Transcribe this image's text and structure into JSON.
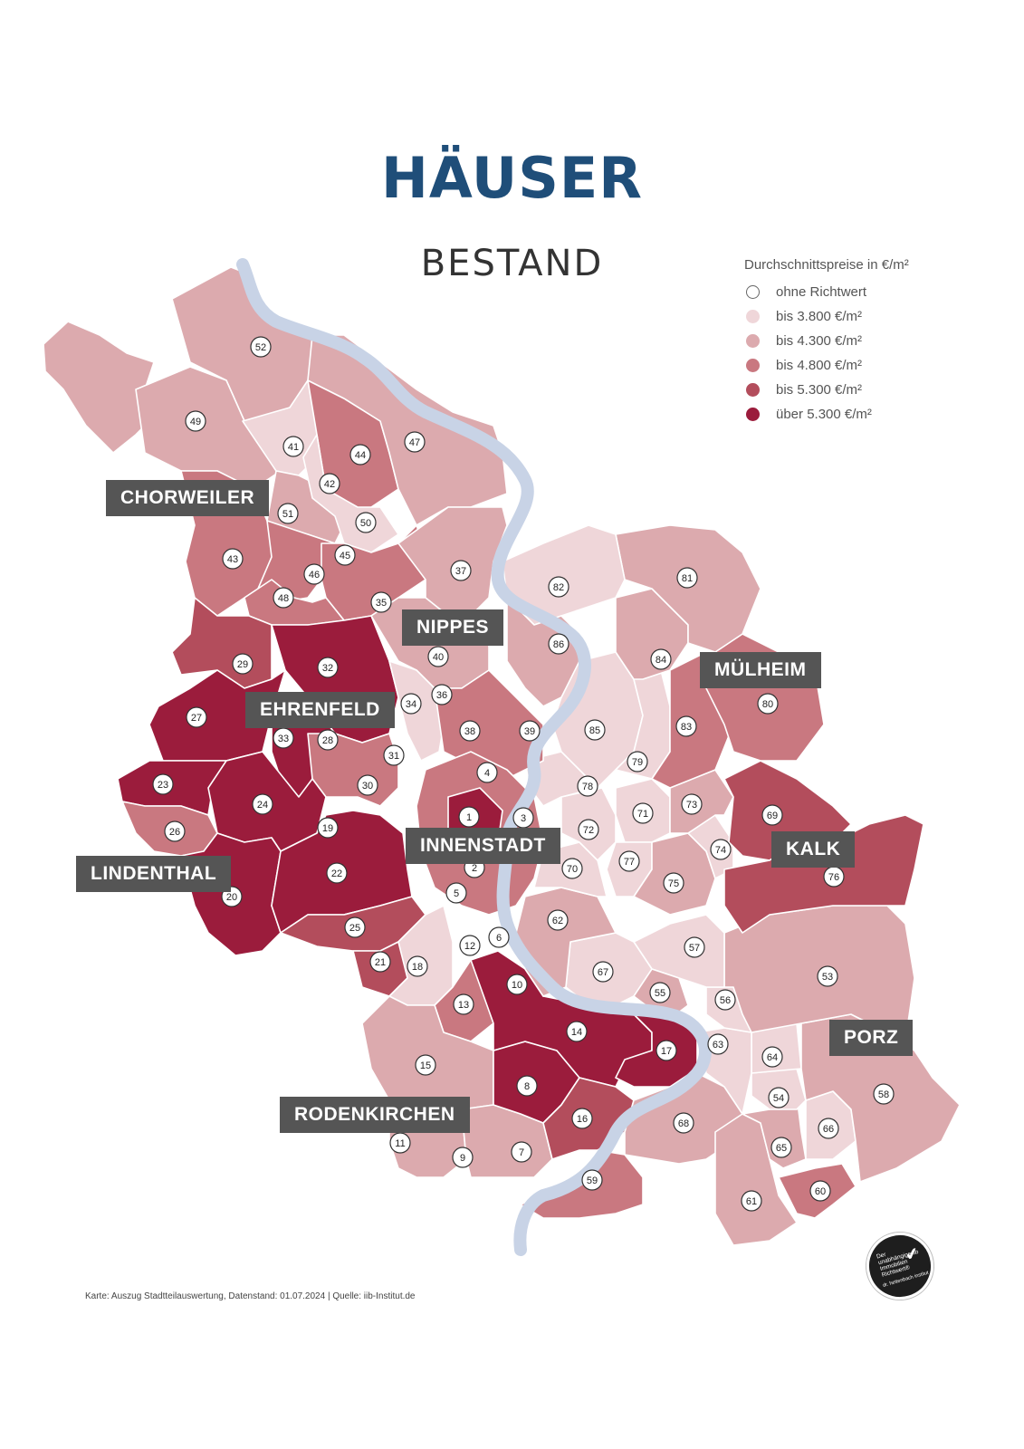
{
  "page": {
    "title": "HÄUSER",
    "subtitle": "BESTAND",
    "source": "Karte: Auszug Stadtteilauswertung, Datenstand: 01.07.2024 | Quelle: iib-Institut.de"
  },
  "legend": {
    "title": "Durchschnittspreise in €/m²",
    "items": [
      {
        "label": "ohne Richtwert",
        "color": "#ffffff"
      },
      {
        "label": "bis 3.800 €/m²",
        "color": "#efd6d9"
      },
      {
        "label": "bis 4.300 €/m²",
        "color": "#dcaaae"
      },
      {
        "label": "bis 4.800 €/m²",
        "color": "#c97880"
      },
      {
        "label": "bis 5.300 €/m²",
        "color": "#b34d5c"
      },
      {
        "label": "über 5.300 €/m²",
        "color": "#9b1c3c"
      }
    ]
  },
  "districts": [
    {
      "name": "CHORWEILER"
    },
    {
      "name": "NIPPES"
    },
    {
      "name": "MÜLHEIM"
    },
    {
      "name": "EHRENFELD"
    },
    {
      "name": "INNENSTADT"
    },
    {
      "name": "KALK"
    },
    {
      "name": "LINDENTHAL"
    },
    {
      "name": "PORZ"
    },
    {
      "name": "RODENKIRCHEN"
    }
  ],
  "map_labels": [
    "1",
    "2",
    "3",
    "4",
    "5",
    "6",
    "7",
    "8",
    "9",
    "10",
    "11",
    "12",
    "13",
    "14",
    "15",
    "16",
    "17",
    "18",
    "19",
    "20",
    "21",
    "22",
    "23",
    "24",
    "25",
    "26",
    "27",
    "28",
    "29",
    "30",
    "31",
    "32",
    "33",
    "34",
    "35",
    "36",
    "37",
    "38",
    "39",
    "40",
    "41",
    "42",
    "43",
    "44",
    "45",
    "46",
    "47",
    "48",
    "49",
    "50",
    "51",
    "52",
    "53",
    "54",
    "55",
    "56",
    "57",
    "58",
    "59",
    "60",
    "61",
    "62",
    "63",
    "64",
    "65",
    "66",
    "67",
    "68",
    "69",
    "70",
    "71",
    "72",
    "73",
    "74",
    "75",
    "76",
    "77",
    "78",
    "79",
    "80",
    "81",
    "82",
    "83",
    "84",
    "85",
    "86"
  ],
  "price_class_by_label": {
    "1": 5,
    "2": 3,
    "3": 3,
    "4": 3,
    "5": 3,
    "6": 4,
    "7": 2,
    "8": 5,
    "9": 2,
    "10": 5,
    "11": 2,
    "12": 3,
    "13": 3,
    "14": 5,
    "15": 2,
    "16": 4,
    "17": 5,
    "18": 1,
    "19": 5,
    "20": 5,
    "21": 4,
    "22": 5,
    "23": 5,
    "24": 5,
    "25": 4,
    "26": 3,
    "27": 5,
    "28": 3,
    "29": 4,
    "30": 4,
    "31": 4,
    "32": 5,
    "33": 5,
    "34": 1,
    "35": 3,
    "36": 2,
    "37": 2,
    "38": 3,
    "39": 3,
    "40": 2,
    "41": 1,
    "42": 1,
    "43": 3,
    "44": 3,
    "45": 2,
    "46": 1,
    "47": 2,
    "48": 3,
    "49": 2,
    "50": 1,
    "51": 2,
    "52": 2,
    "53": 2,
    "54": 1,
    "55": 2,
    "56": 1,
    "57": 1,
    "58": 2,
    "59": 3,
    "60": 3,
    "61": 2,
    "62": 2,
    "63": 1,
    "64": 1,
    "65": 2,
    "66": 1,
    "67": 1,
    "68": 2,
    "69": 4,
    "70": 1,
    "71": 1,
    "72": 1,
    "73": 2,
    "74": 1,
    "75": 2,
    "76": 4,
    "77": 1,
    "78": 1,
    "79": 1,
    "80": 3,
    "81": 2,
    "82": 1,
    "83": 3,
    "84": 2,
    "85": 1,
    "86": 2
  },
  "river_label": "Rhein",
  "seal": {
    "text": "Der unabhängige iib Immobilien Richtwert®",
    "sub": "dr. hettenbach institut",
    "mark": "iib"
  }
}
